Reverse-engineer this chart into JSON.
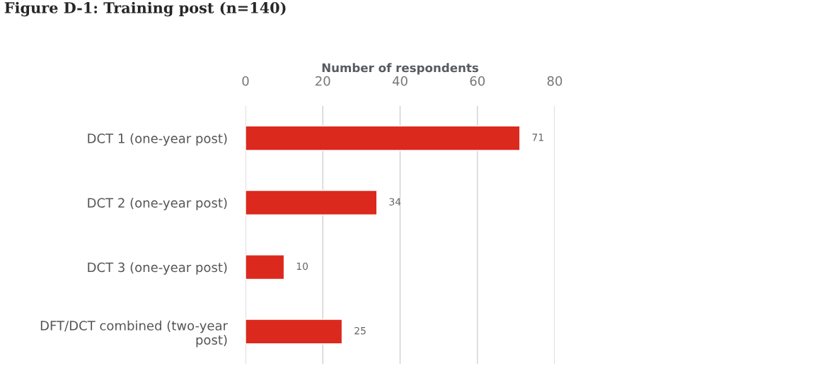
{
  "chart_data": {
    "type": "bar",
    "orientation": "horizontal",
    "title": "Figure D-1: Training post (n=140)",
    "xlabel": "Number of respondents",
    "categories": [
      "DCT 1 (one-year post)",
      "DCT 2 (one-year post)",
      "DCT 3 (one-year post)",
      "DFT/DCT combined (two-year\npost)"
    ],
    "values": [
      71,
      34,
      10,
      25
    ],
    "color": "#dc291e",
    "xlim": [
      0,
      80
    ],
    "xticks": [
      0,
      20,
      40,
      60,
      80
    ],
    "grid": "x",
    "data_labels": true
  }
}
